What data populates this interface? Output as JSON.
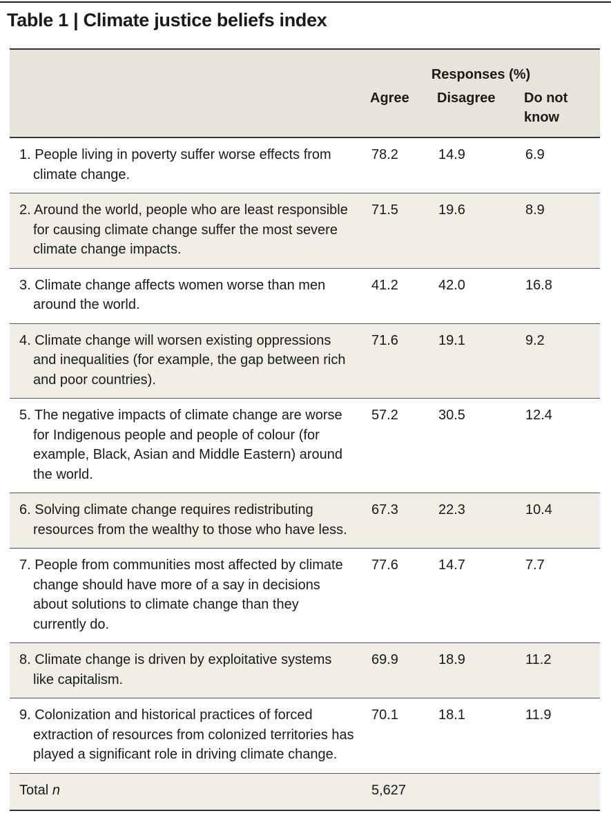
{
  "title": "Table 1 | Climate justice beliefs index",
  "header": {
    "group": "Responses (%)",
    "col_agree": "Agree",
    "col_disagree": "Disagree",
    "col_dk_line1": "Do not",
    "col_dk_line2": "know"
  },
  "rows": [
    {
      "statement": "1. People living in poverty suffer worse effects from climate change.",
      "agree": "78.2",
      "disagree": "14.9",
      "dk": "6.9"
    },
    {
      "statement": "2. Around the world, people who are least responsible for causing climate change suffer the most severe climate change impacts.",
      "agree": "71.5",
      "disagree": "19.6",
      "dk": "8.9"
    },
    {
      "statement": "3. Climate change affects women worse than men around the world.",
      "agree": "41.2",
      "disagree": "42.0",
      "dk": "16.8"
    },
    {
      "statement": "4. Climate change will worsen existing oppressions and inequalities (for example, the gap between rich and poor countries).",
      "agree": "71.6",
      "disagree": "19.1",
      "dk": "9.2"
    },
    {
      "statement": "5. The negative impacts of climate change are worse for Indigenous people and people of colour (for example, Black, Asian and Middle Eastern) around the world.",
      "agree": "57.2",
      "disagree": "30.5",
      "dk": "12.4"
    },
    {
      "statement": "6. Solving climate change requires redistributing resources from the wealthy to those who have less.",
      "agree": "67.3",
      "disagree": "22.3",
      "dk": "10.4"
    },
    {
      "statement": "7. People from communities most affected by climate change should have more of a say in decisions about solutions to climate change than they currently do.",
      "agree": "77.6",
      "disagree": "14.7",
      "dk": "7.7"
    },
    {
      "statement": "8. Climate change is driven by exploitative systems like capitalism.",
      "agree": "69.9",
      "disagree": "18.9",
      "dk": "11.2"
    },
    {
      "statement": "9. Colonization and historical practices of forced extraction of resources from colonized territories has played a significant role in driving climate change.",
      "agree": "70.1",
      "disagree": "18.1",
      "dk": "11.9"
    }
  ],
  "total": {
    "label": "Total",
    "n_label": "n",
    "value": "5,627"
  },
  "colors": {
    "header_bg": "#e8e4dc",
    "shade_bg": "#f1eee7",
    "rule": "#333333"
  }
}
